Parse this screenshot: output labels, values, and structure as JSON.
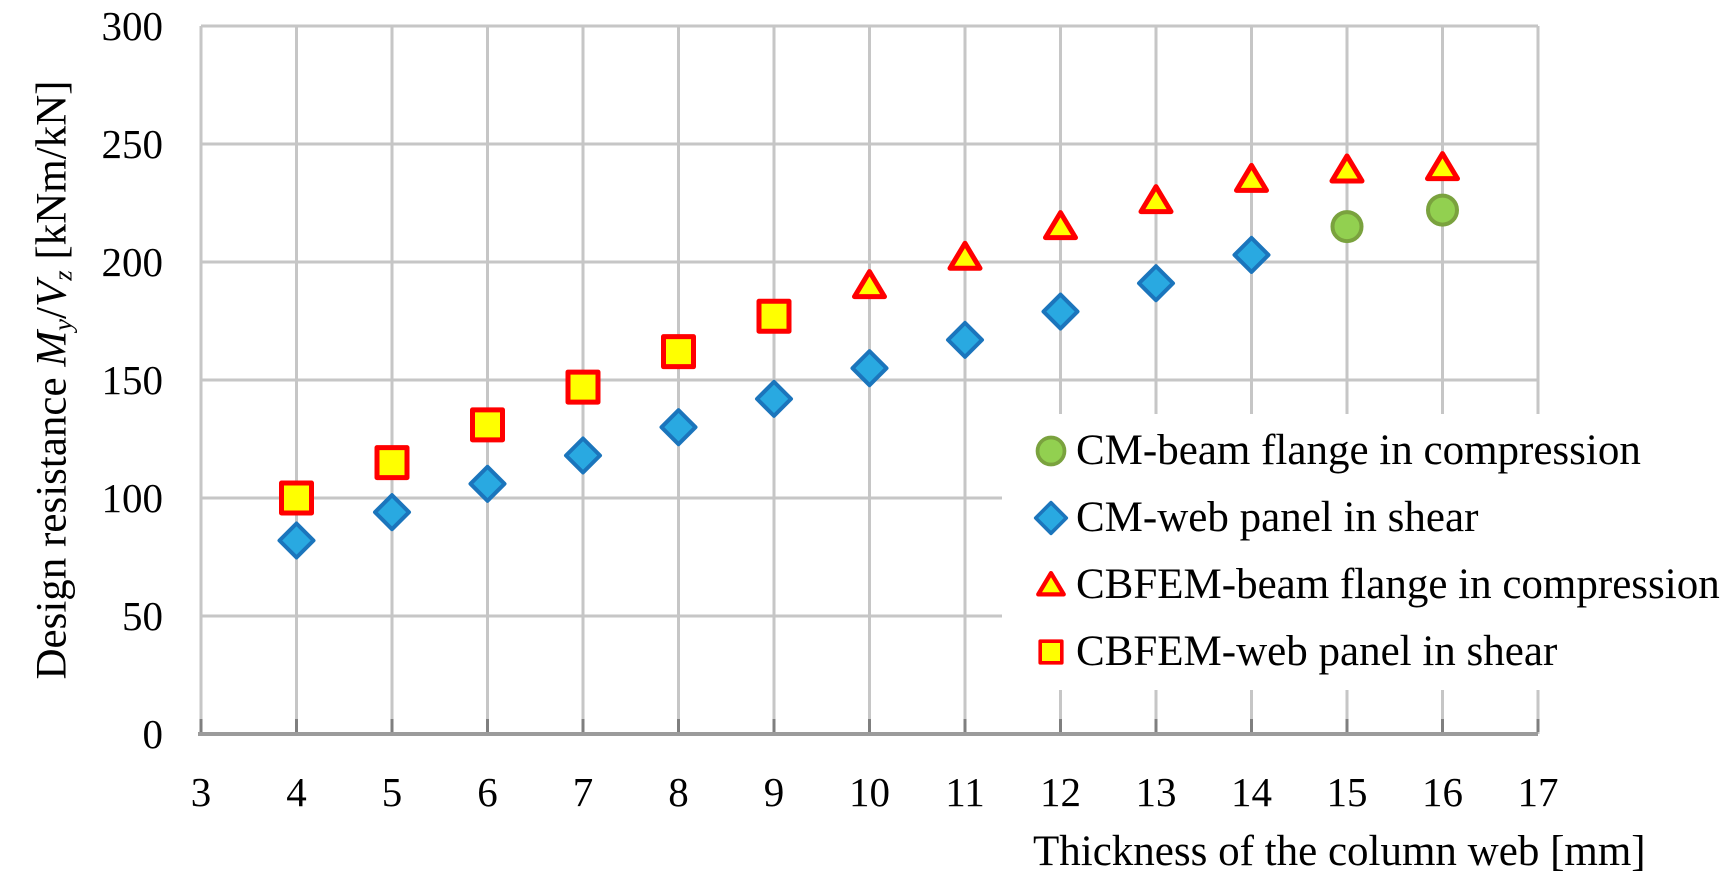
{
  "chart_data": {
    "type": "scatter",
    "title": "",
    "xlabel": "Thickness of the column web [mm]",
    "ylabel_plain": "Design resistance My/Vz [kNm/kN]",
    "ylabel_parts": {
      "prefix": "Design resistance ",
      "m": "M",
      "m_sub": "y",
      "slash": "/",
      "v": "V",
      "v_sub": "z",
      "suffix": " [kNm/kN]"
    },
    "axes": {
      "x_min": 3,
      "x_max": 17,
      "y_min": 0,
      "y_max": 300,
      "x_ticks": [
        3,
        4,
        5,
        6,
        7,
        8,
        9,
        10,
        11,
        12,
        13,
        14,
        15,
        16,
        17
      ],
      "y_ticks": [
        0,
        50,
        100,
        150,
        200,
        250,
        300
      ],
      "grid": true,
      "legend_position": "inside-right"
    },
    "series": [
      {
        "name": "CM-beam flange in compression",
        "marker": "circle",
        "fill": "#92D050",
        "stroke": "#7AA23E",
        "points": [
          [
            15,
            215
          ],
          [
            16,
            222
          ]
        ]
      },
      {
        "name": "CM-web panel in shear",
        "marker": "diamond",
        "fill": "#29A9E1",
        "stroke": "#1B75BC",
        "points": [
          [
            4,
            82
          ],
          [
            5,
            94
          ],
          [
            6,
            106
          ],
          [
            7,
            118
          ],
          [
            8,
            130
          ],
          [
            9,
            142
          ],
          [
            10,
            155
          ],
          [
            11,
            167
          ],
          [
            12,
            179
          ],
          [
            13,
            191
          ],
          [
            14,
            203
          ]
        ]
      },
      {
        "name": "CBFEM-beam flange in compression",
        "marker": "triangle",
        "fill": "#FFFF00",
        "stroke": "#FF0000",
        "points": [
          [
            10,
            190
          ],
          [
            11,
            202
          ],
          [
            12,
            215
          ],
          [
            13,
            226
          ],
          [
            14,
            235
          ],
          [
            15,
            239
          ],
          [
            16,
            240
          ]
        ]
      },
      {
        "name": "CBFEM-web panel in shear",
        "marker": "square",
        "fill": "#FFFF00",
        "stroke": "#FF0000",
        "points": [
          [
            4,
            100
          ],
          [
            5,
            115
          ],
          [
            6,
            131
          ],
          [
            7,
            147
          ],
          [
            8,
            162
          ],
          [
            9,
            177
          ]
        ]
      }
    ],
    "colors": {
      "background": "#FFFFFF",
      "gridline": "#C6C6C6",
      "axis_line": "#9B9B9B",
      "tick_mark": "#7F7F7F",
      "text": "#000000"
    }
  }
}
